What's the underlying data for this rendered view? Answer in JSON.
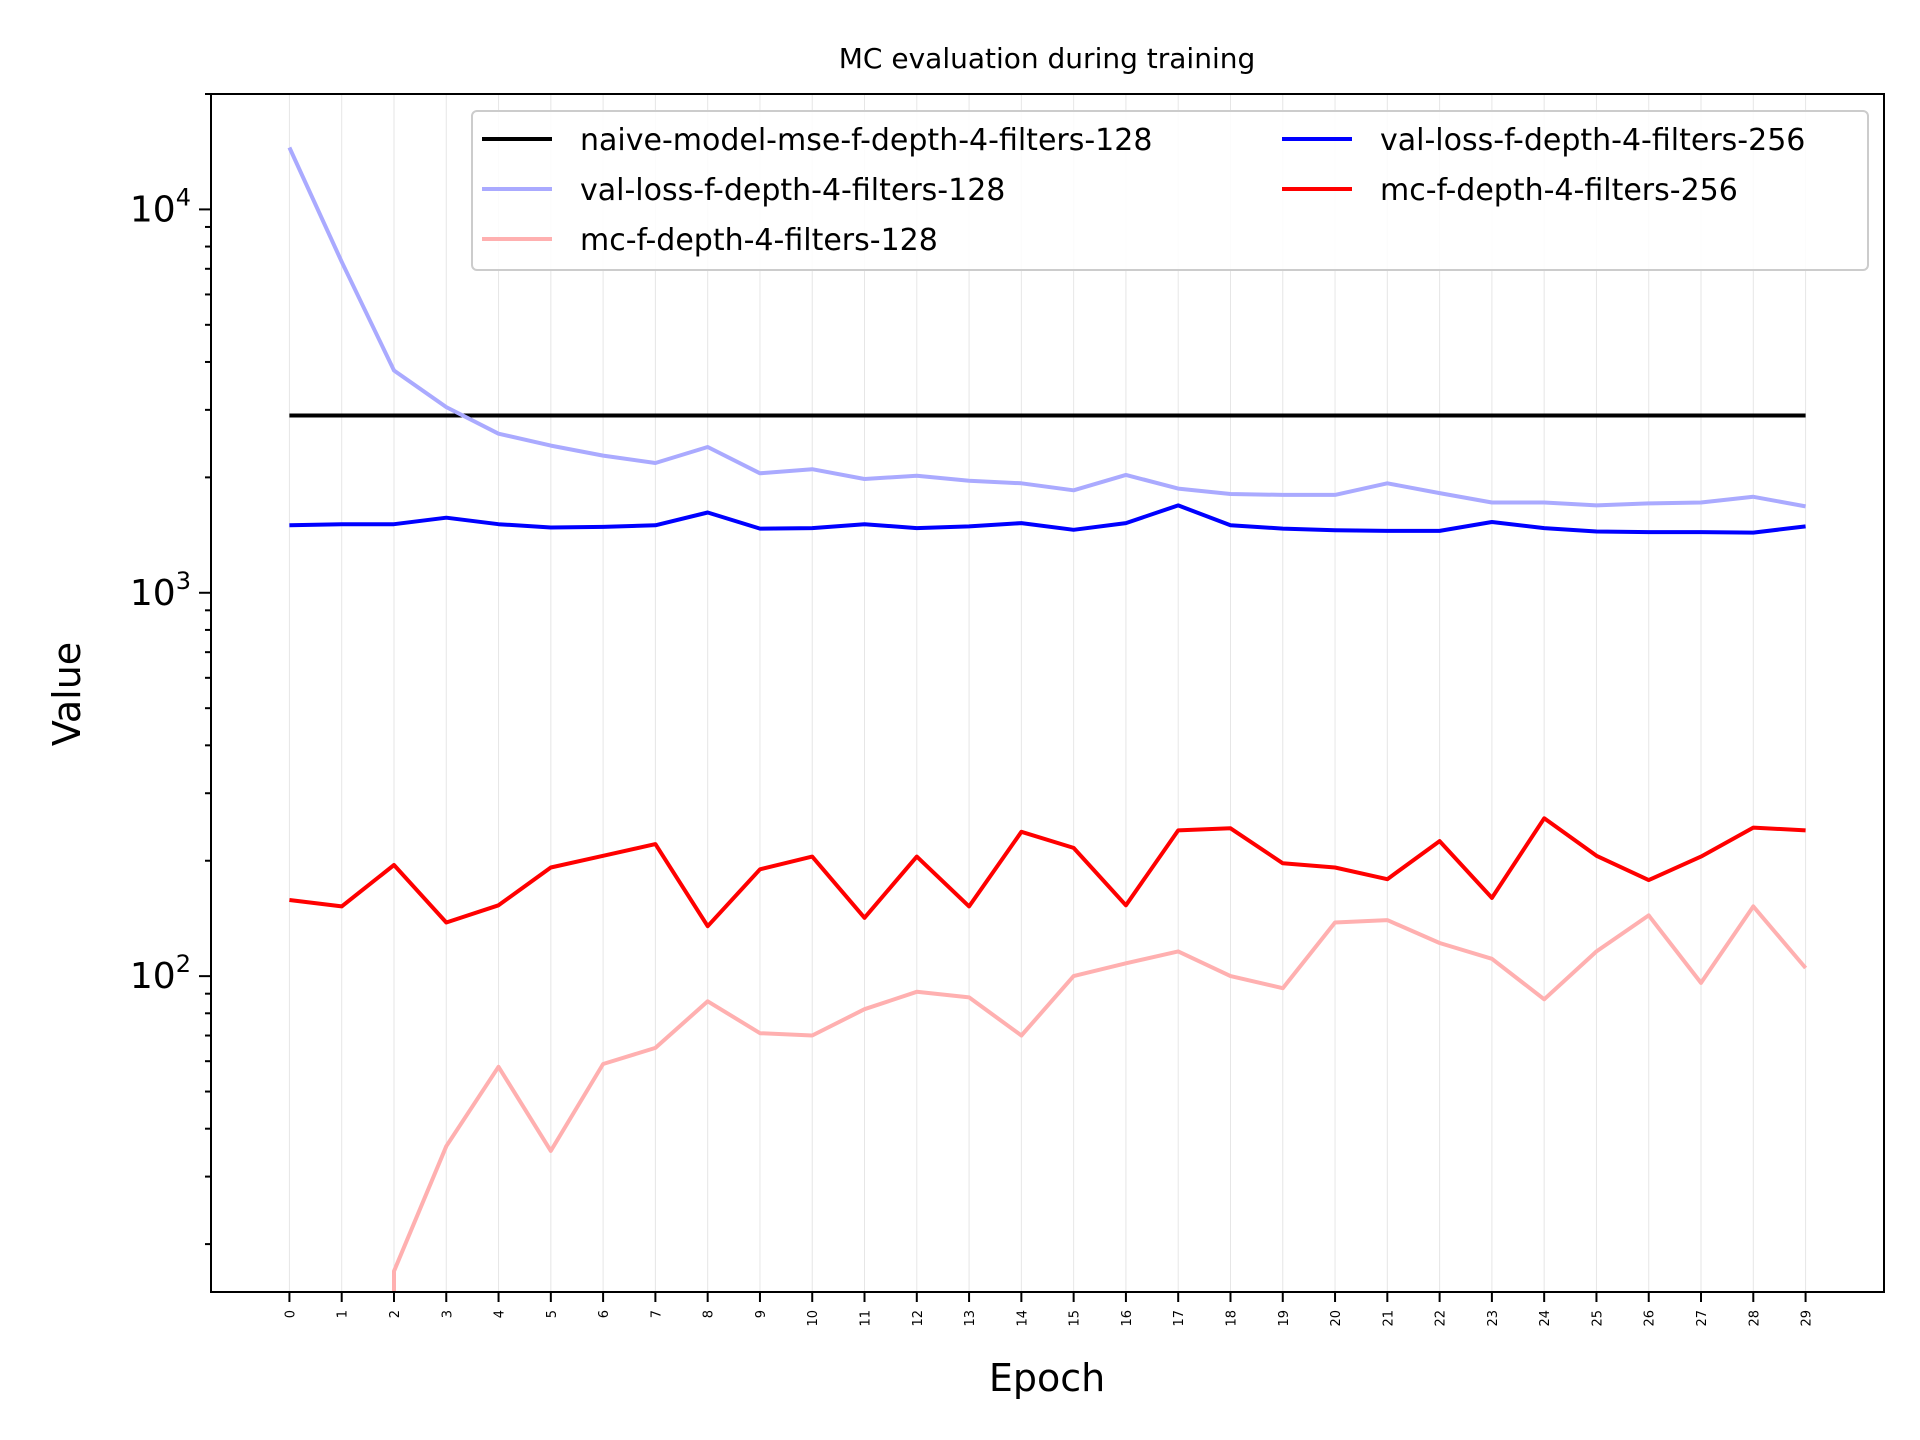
{
  "chart_data": {
    "type": "line",
    "title": "MC evaluation during training",
    "xlabel": "Epoch",
    "ylabel": "Value",
    "yscale": "log",
    "ylim": [
      15,
      20000
    ],
    "xlim": [
      -1.5,
      30.5
    ],
    "x": [
      0,
      1,
      2,
      3,
      4,
      5,
      6,
      7,
      8,
      9,
      10,
      11,
      12,
      13,
      14,
      15,
      16,
      17,
      18,
      19,
      20,
      21,
      22,
      23,
      24,
      25,
      26,
      27,
      28,
      29
    ],
    "x_tick_labels": [
      "0",
      "1",
      "2",
      "3",
      "4",
      "5",
      "6",
      "7",
      "8",
      "9",
      "10",
      "11",
      "12",
      "13",
      "14",
      "15",
      "16",
      "17",
      "18",
      "19",
      "20",
      "21",
      "22",
      "23",
      "24",
      "25",
      "26",
      "27",
      "28",
      "29"
    ],
    "y_ticks": [
      {
        "value": 100,
        "base": "10",
        "exp": "2"
      },
      {
        "value": 1000,
        "base": "10",
        "exp": "3"
      },
      {
        "value": 10000,
        "base": "10",
        "exp": "4"
      }
    ],
    "grid": "vertical",
    "legend_position": "top-right",
    "series": [
      {
        "name": "naive-model-mse-f-depth-4-filters-128",
        "color": "#000000",
        "values": [
          2900,
          2900,
          2900,
          2900,
          2900,
          2900,
          2900,
          2900,
          2900,
          2900,
          2900,
          2900,
          2900,
          2900,
          2900,
          2900,
          2900,
          2900,
          2900,
          2900,
          2900,
          2900,
          2900,
          2900,
          2900,
          2900,
          2900,
          2900,
          2900,
          2900
        ]
      },
      {
        "name": "val-loss-f-depth-4-filters-128",
        "color": "#aaaaff",
        "values": [
          14500,
          7300,
          3800,
          3050,
          2600,
          2420,
          2280,
          2180,
          2400,
          2050,
          2100,
          1980,
          2020,
          1960,
          1930,
          1850,
          2030,
          1870,
          1810,
          1800,
          1800,
          1930,
          1820,
          1720,
          1720,
          1690,
          1710,
          1720,
          1780,
          1680
        ]
      },
      {
        "name": "mc-f-depth-4-filters-128",
        "color": "#ffb0b0",
        "values": [
          null,
          null,
          17,
          36,
          58,
          35,
          59,
          65,
          86,
          71,
          70,
          82,
          91,
          88,
          70,
          100,
          108,
          116,
          100,
          93,
          138,
          140,
          122,
          111,
          87,
          116,
          144,
          96,
          152,
          105
        ]
      },
      {
        "name": "val-loss-f-depth-4-filters-256",
        "color": "#0000ff",
        "values": [
          1500,
          1510,
          1510,
          1570,
          1510,
          1480,
          1485,
          1500,
          1620,
          1470,
          1475,
          1510,
          1475,
          1490,
          1520,
          1460,
          1520,
          1690,
          1500,
          1470,
          1455,
          1450,
          1450,
          1530,
          1475,
          1445,
          1440,
          1440,
          1435,
          1490
        ]
      },
      {
        "name": "mc-f-depth-4-filters-256",
        "color": "#ff0000",
        "values": [
          158,
          152,
          195,
          138,
          153,
          192,
          206,
          221,
          135,
          190,
          205,
          142,
          205,
          152,
          238,
          216,
          153,
          240,
          243,
          197,
          192,
          179,
          225,
          160,
          258,
          206,
          178,
          205,
          244,
          240
        ]
      }
    ]
  }
}
